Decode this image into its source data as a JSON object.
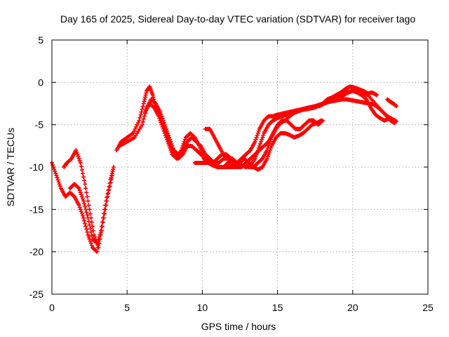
{
  "chart_data": {
    "type": "scatter",
    "title": "Day 165 of 2025, Sidereal Day-to-day VTEC variation (SDTVAR) for receiver tago",
    "xlabel": "GPS time / hours",
    "ylabel": "SDTVAR / TECUs",
    "xlim": [
      0,
      25
    ],
    "ylim": [
      -25,
      5
    ],
    "xticks": [
      0,
      5,
      10,
      15,
      20,
      25
    ],
    "yticks": [
      5,
      0,
      -5,
      -10,
      -15,
      -20,
      -25
    ],
    "grid": true,
    "marker": "+",
    "color": "#ff0000",
    "series": [
      {
        "x": [
          0.0,
          0.3,
          0.6,
          0.9,
          1.2,
          1.5,
          1.8,
          2.1,
          2.4,
          2.7,
          3.0,
          3.3,
          3.6,
          3.9,
          4.1
        ],
        "values": [
          -9.5,
          -11.0,
          -12.5,
          -13.5,
          -13.0,
          -13.5,
          -14.5,
          -16.0,
          -18.0,
          -19.5,
          -20.0,
          -17.0,
          -14.0,
          -11.5,
          -10.0
        ]
      },
      {
        "x": [
          0.8,
          1.0,
          1.3,
          1.6,
          1.9,
          2.2,
          2.5,
          2.8,
          3.1,
          3.4,
          3.7,
          4.0
        ],
        "values": [
          -10.0,
          -9.5,
          -9.0,
          -8.0,
          -9.5,
          -12.0,
          -15.0,
          -18.0,
          -19.5,
          -16.5,
          -13.5,
          -11.0
        ]
      },
      {
        "x": [
          1.2,
          1.5,
          1.8,
          2.1,
          2.4,
          2.7,
          3.0,
          3.3
        ],
        "values": [
          -12.5,
          -12.0,
          -12.5,
          -14.0,
          -16.0,
          -18.5,
          -19.0,
          -17.5
        ]
      },
      {
        "x": [
          4.3,
          4.6,
          5.0,
          5.4,
          5.8,
          6.1,
          6.3,
          6.5,
          6.7,
          6.9,
          7.2,
          7.5,
          7.8,
          8.1,
          8.4,
          8.7,
          9.0,
          9.3,
          9.6,
          9.9,
          10.2,
          10.5,
          10.8,
          11.1,
          11.4,
          11.7,
          12.0,
          12.3,
          12.6,
          12.9,
          13.2,
          13.5,
          13.8,
          14.1,
          14.4,
          14.7,
          15.0,
          15.5,
          16.0,
          16.5,
          17.0,
          17.5,
          18.0,
          18.5,
          19.0,
          19.5,
          20.0,
          20.5,
          21.0,
          21.5,
          22.0,
          22.5,
          22.8
        ],
        "values": [
          -8.0,
          -7.0,
          -6.5,
          -6.0,
          -4.5,
          -2.5,
          -1.0,
          -0.5,
          -1.5,
          -3.0,
          -4.0,
          -5.5,
          -7.0,
          -8.5,
          -9.0,
          -8.5,
          -7.5,
          -7.5,
          -8.0,
          -8.5,
          -9.0,
          -9.5,
          -9.5,
          -9.5,
          -9.0,
          -9.0,
          -9.5,
          -9.5,
          -9.0,
          -8.5,
          -8.0,
          -7.0,
          -5.5,
          -4.5,
          -4.0,
          -4.0,
          -3.8,
          -3.6,
          -3.4,
          -3.2,
          -3.0,
          -2.8,
          -2.5,
          -2.0,
          -1.5,
          -1.2,
          -1.0,
          -1.2,
          -1.5,
          -2.5,
          -3.5,
          -4.5,
          -4.8
        ]
      },
      {
        "x": [
          4.5,
          5.0,
          5.5,
          6.0,
          6.3,
          6.6,
          6.9,
          7.2,
          7.5,
          7.8,
          8.1,
          8.4,
          8.7,
          9.0,
          9.3,
          9.6,
          9.9,
          10.2,
          10.5,
          10.8,
          11.1,
          11.4,
          11.7,
          12.0,
          12.3,
          12.6,
          12.9,
          13.2,
          13.5,
          13.8,
          14.1,
          14.4,
          14.7,
          15.0,
          15.3,
          15.6,
          15.9,
          16.2,
          16.5,
          16.8,
          17.1,
          17.4,
          17.7,
          18.0
        ],
        "values": [
          -7.5,
          -7.0,
          -6.5,
          -5.0,
          -3.0,
          -2.0,
          -2.5,
          -3.5,
          -5.0,
          -6.5,
          -8.0,
          -8.5,
          -8.0,
          -7.0,
          -6.5,
          -7.0,
          -7.5,
          -8.5,
          -9.0,
          -9.5,
          -10.0,
          -10.0,
          -9.5,
          -9.5,
          -10.0,
          -10.0,
          -9.5,
          -9.0,
          -8.5,
          -8.0,
          -7.5,
          -7.0,
          -6.0,
          -5.0,
          -4.5,
          -4.5,
          -5.0,
          -5.5,
          -5.5,
          -5.0,
          -4.5,
          -4.5,
          -5.0,
          -4.5
        ]
      },
      {
        "x": [
          6.2,
          6.5,
          6.8,
          7.1,
          7.4,
          7.7,
          8.0,
          8.3,
          8.6,
          8.9,
          9.2,
          9.5,
          9.8,
          10.1,
          10.4,
          10.7,
          11.0,
          11.3,
          11.6,
          11.9,
          12.2,
          12.5,
          12.8,
          13.1,
          13.4,
          13.7,
          14.0,
          14.3,
          14.6,
          14.9,
          15.2,
          15.5,
          15.8,
          16.1,
          16.4,
          16.7,
          17.0,
          17.3,
          17.6,
          17.9
        ],
        "values": [
          -3.5,
          -2.5,
          -3.0,
          -4.0,
          -5.5,
          -7.0,
          -8.5,
          -9.0,
          -8.0,
          -6.5,
          -6.0,
          -6.5,
          -7.5,
          -9.0,
          -9.5,
          -9.5,
          -9.0,
          -8.5,
          -8.5,
          -9.0,
          -9.5,
          -9.5,
          -9.0,
          -9.5,
          -10.0,
          -10.3,
          -10.0,
          -9.0,
          -7.5,
          -6.5,
          -6.0,
          -6.0,
          -6.2,
          -6.5,
          -6.3,
          -6.0,
          -5.5,
          -5.0,
          -4.8,
          -4.5
        ]
      },
      {
        "x": [
          9.5,
          9.8,
          10.1,
          10.4,
          10.7,
          11.0,
          11.3,
          11.6,
          11.9,
          12.2,
          12.5,
          12.8,
          13.1,
          13.4,
          13.7,
          14.0,
          14.3,
          14.6,
          14.9,
          15.2,
          15.5,
          15.8,
          16.1,
          16.4,
          16.7,
          17.0,
          17.3,
          17.6,
          17.9,
          18.2,
          18.5,
          18.8,
          19.1,
          19.4,
          19.7,
          20.0,
          20.3,
          20.6,
          20.9,
          21.2,
          21.5,
          21.8,
          22.1,
          22.4,
          22.7
        ],
        "values": [
          -9.5,
          -9.5,
          -9.5,
          -9.5,
          -9.8,
          -10.0,
          -10.0,
          -10.0,
          -10.0,
          -10.0,
          -9.8,
          -9.8,
          -10.0,
          -10.0,
          -9.5,
          -9.0,
          -8.0,
          -6.5,
          -5.5,
          -4.8,
          -4.5,
          -4.0,
          -3.6,
          -3.4,
          -3.2,
          -3.0,
          -2.9,
          -2.8,
          -2.6,
          -2.4,
          -2.2,
          -2.0,
          -1.8,
          -1.5,
          -1.2,
          -1.0,
          -1.2,
          -1.5,
          -2.0,
          -3.0,
          -3.8,
          -4.2,
          -4.5,
          -4.3,
          -4.5
        ]
      },
      {
        "x": [
          10.2,
          10.5,
          10.8,
          11.1,
          11.4,
          11.7,
          12.0,
          12.3,
          12.6,
          12.9,
          13.2,
          13.5,
          13.8,
          14.1,
          14.4,
          14.7,
          15.0,
          15.3,
          15.6,
          15.9,
          16.2,
          16.5,
          16.8,
          17.1,
          17.4,
          17.7,
          18.0,
          18.3,
          18.6,
          18.9,
          19.2,
          19.5,
          19.8,
          20.1,
          20.4,
          20.7,
          21.0,
          21.3,
          21.6
        ],
        "values": [
          -5.5,
          -5.5,
          -6.5,
          -7.5,
          -8.5,
          -9.0,
          -9.0,
          -9.5,
          -9.8,
          -10.0,
          -9.8,
          -9.0,
          -7.5,
          -6.0,
          -5.0,
          -4.5,
          -4.2,
          -4.0,
          -3.8,
          -3.6,
          -3.4,
          -3.3,
          -3.2,
          -3.1,
          -3.0,
          -2.8,
          -2.5,
          -2.0,
          -1.8,
          -1.5,
          -1.2,
          -0.8,
          -0.5,
          -0.6,
          -0.8,
          -1.0,
          -1.3,
          -1.2,
          -1.5
        ]
      },
      {
        "x": [
          17.8,
          18.1,
          18.4,
          18.7,
          19.0,
          19.3,
          19.6,
          19.9,
          20.2,
          20.5,
          20.8,
          21.1,
          21.4,
          21.7,
          22.0,
          22.3,
          22.6,
          22.9
        ],
        "values": [
          -2.8,
          -2.5,
          -2.3,
          -2.2,
          -2.1,
          -2.0,
          -2.0,
          -2.1,
          -2.2,
          -2.3,
          -2.4,
          -2.5,
          -2.6,
          -3.0,
          -3.5,
          -4.0,
          -4.3,
          -4.6
        ]
      },
      {
        "x": [
          22.3,
          22.5,
          22.7,
          22.9
        ],
        "values": [
          -2.0,
          -2.3,
          -2.5,
          -2.8
        ]
      }
    ]
  }
}
